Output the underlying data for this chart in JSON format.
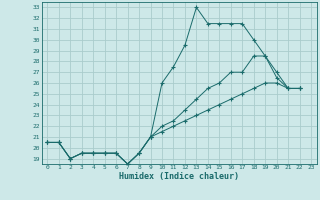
{
  "xlabel": "Humidex (Indice chaleur)",
  "bg_color": "#cde8e8",
  "grid_color": "#aacccc",
  "line_color": "#1a6b6b",
  "xlim": [
    -0.5,
    23.5
  ],
  "ylim": [
    18.5,
    33.5
  ],
  "xticks": [
    0,
    1,
    2,
    3,
    4,
    5,
    6,
    7,
    8,
    9,
    10,
    11,
    12,
    13,
    14,
    15,
    16,
    17,
    18,
    19,
    20,
    21,
    22,
    23
  ],
  "yticks": [
    19,
    20,
    21,
    22,
    23,
    24,
    25,
    26,
    27,
    28,
    29,
    30,
    31,
    32,
    33
  ],
  "series": [
    [
      20.5,
      20.5,
      19.0,
      19.5,
      19.5,
      19.5,
      19.5,
      18.5,
      19.5,
      21.0,
      26.0,
      27.5,
      29.5,
      33.0,
      31.5,
      31.5,
      31.5,
      31.5,
      30.0,
      28.5,
      26.5,
      25.5,
      25.5
    ],
    [
      20.5,
      20.5,
      19.0,
      19.5,
      19.5,
      19.5,
      19.5,
      18.5,
      19.5,
      21.0,
      22.0,
      22.5,
      23.5,
      24.5,
      25.5,
      26.0,
      27.0,
      27.0,
      28.5,
      28.5,
      27.0,
      25.5,
      25.5
    ],
    [
      20.5,
      20.5,
      19.0,
      19.5,
      19.5,
      19.5,
      19.5,
      18.5,
      19.5,
      21.0,
      21.5,
      22.0,
      22.5,
      23.0,
      23.5,
      24.0,
      24.5,
      25.0,
      25.5,
      26.0,
      26.0,
      25.5,
      25.5
    ]
  ],
  "x_vals": [
    0,
    1,
    2,
    3,
    4,
    5,
    6,
    7,
    8,
    9,
    10,
    11,
    12,
    13,
    14,
    15,
    16,
    17,
    18,
    19,
    20,
    21,
    22
  ]
}
